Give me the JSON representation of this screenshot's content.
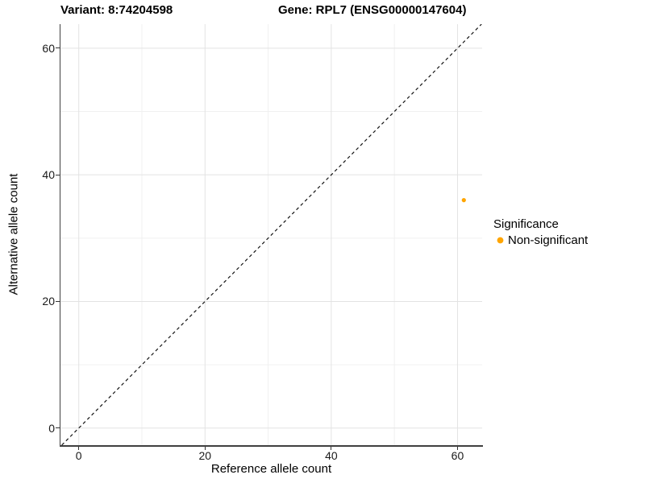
{
  "chart_data": {
    "type": "scatter",
    "titles": [
      "Variant: 8:74204598",
      "Gene: RPL7 (ENSG00000147604)"
    ],
    "xlabel": "Reference allele count",
    "ylabel": "Alternative allele count",
    "xlim": [
      -2.9,
      63.9
    ],
    "ylim": [
      -2.7,
      63.8
    ],
    "x_ticks": [
      0,
      20,
      40,
      60
    ],
    "y_ticks": [
      0,
      20,
      40,
      60
    ],
    "x_minor_ticks": [
      10,
      30,
      50
    ],
    "y_minor_ticks": [
      10,
      30,
      50
    ],
    "grid": true,
    "refline": {
      "type": "identity",
      "label": "y = x",
      "style": "dashed",
      "color": "#141414"
    },
    "series": [
      {
        "name": "Non-significant",
        "color": "#FFA500",
        "points": [
          {
            "x": 61,
            "y": 36
          }
        ]
      }
    ],
    "legend": {
      "title": "Significance",
      "position": "right",
      "items": [
        {
          "label": "Non-significant",
          "color": "#FFA500"
        }
      ]
    },
    "style": {
      "major_grid_color": "#E3E3E3",
      "minor_grid_color": "#F0F0F0",
      "axis_line_color": "#404040",
      "tick_color": "#333333",
      "background": "#FFFFFF",
      "point_radius": 2.6,
      "legend_key_radius": 3.9
    }
  }
}
